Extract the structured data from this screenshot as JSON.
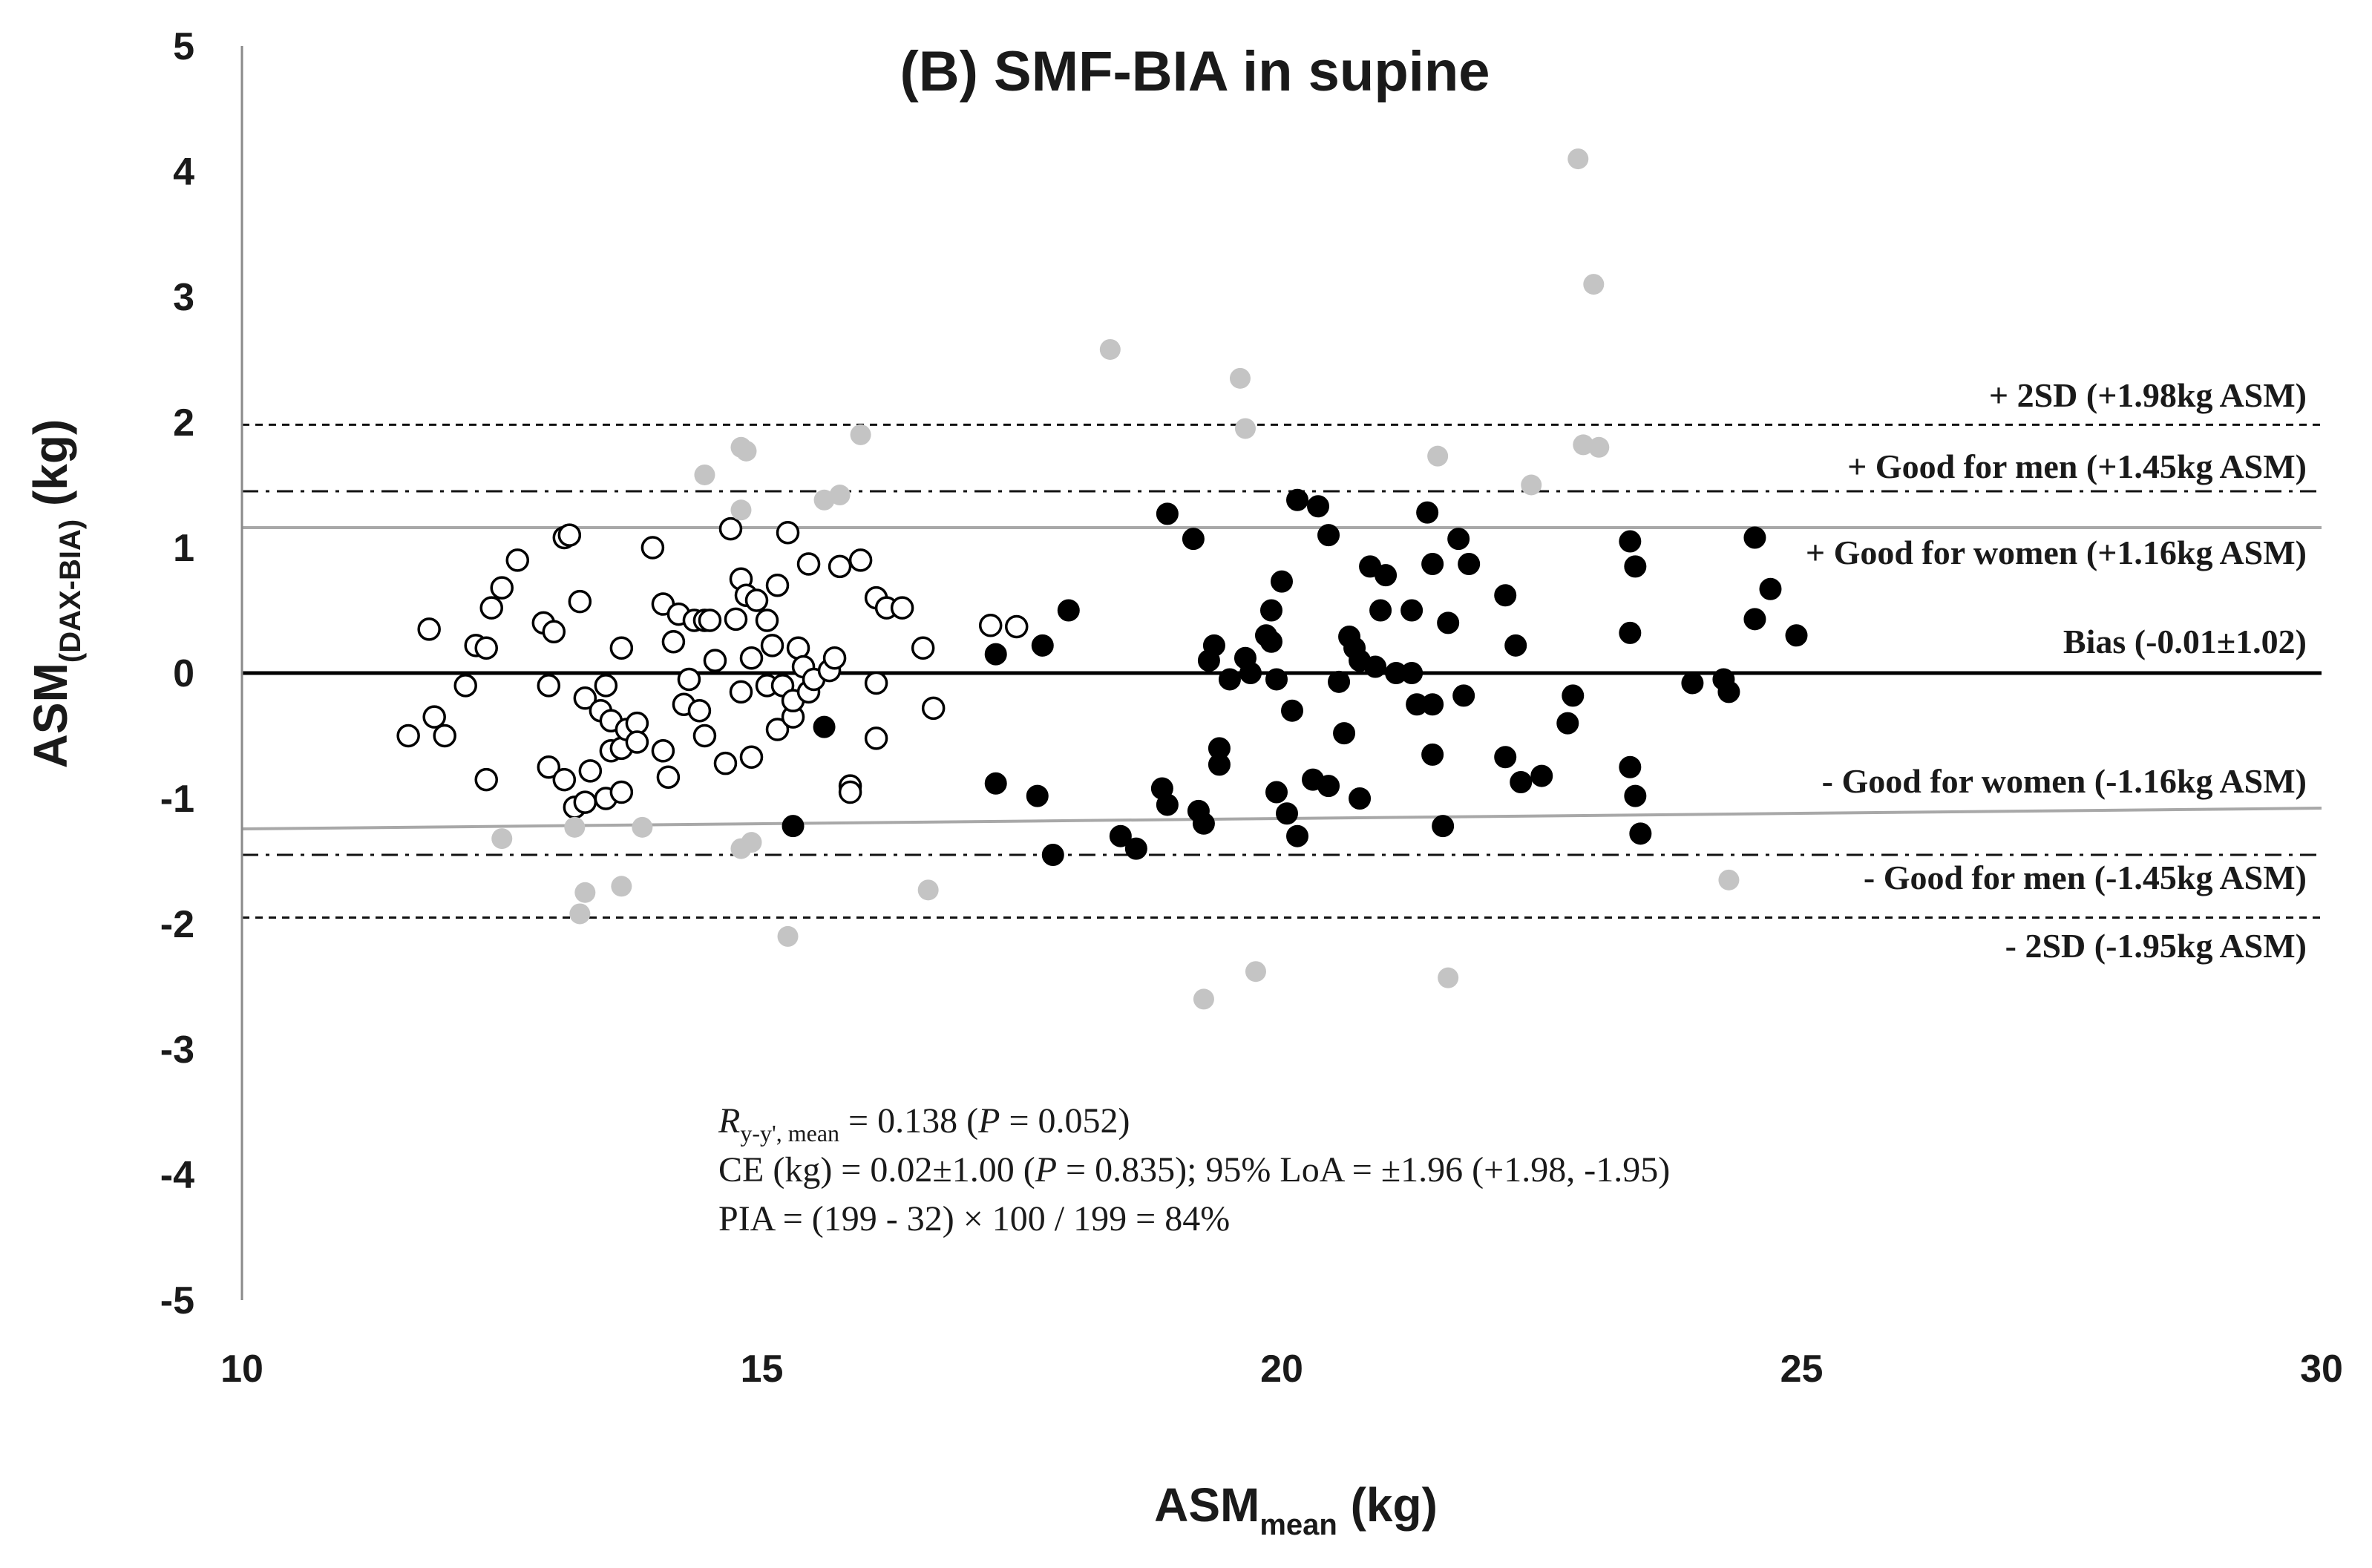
{
  "chart_data": {
    "type": "scatter",
    "title": "(B) SMF-BIA in supine",
    "ylabel": {
      "main": "ASM",
      "sub": "(DAX-BIA)",
      "unit": " (kg)"
    },
    "xlabel": {
      "main": "ASM",
      "sub": "mean",
      "unit": " (kg)"
    },
    "xlim": [
      10,
      30
    ],
    "ylim": [
      -5,
      5
    ],
    "x_ticks": [
      {
        "value": 10,
        "label": "10"
      },
      {
        "value": 15,
        "label": "15"
      },
      {
        "value": 20,
        "label": "20"
      },
      {
        "value": 25,
        "label": "25"
      },
      {
        "value": 30,
        "label": "30"
      }
    ],
    "y_ticks": [
      {
        "value": 5,
        "label": "5"
      },
      {
        "value": 4,
        "label": "4"
      },
      {
        "value": 3,
        "label": "3"
      },
      {
        "value": 2,
        "label": "2"
      },
      {
        "value": 1,
        "label": "1"
      },
      {
        "value": 0,
        "label": "0"
      },
      {
        "value": -1,
        "label": "-1"
      },
      {
        "value": -2,
        "label": "-2"
      },
      {
        "value": -3,
        "label": "-3"
      },
      {
        "value": -4,
        "label": "-4"
      },
      {
        "value": -5,
        "label": "-5"
      }
    ],
    "reference_lines": [
      {
        "name": "plus-2sd",
        "y": 1.98,
        "style": "dashed",
        "label": "+ 2SD (+1.98kg ASM)"
      },
      {
        "name": "plus-good-men",
        "y": 1.45,
        "style": "dashdot",
        "label": "+ Good for men (+1.45kg ASM)"
      },
      {
        "name": "plus-good-women",
        "y": 1.16,
        "style": "gray",
        "label": "+ Good for women (+1.16kg ASM)"
      },
      {
        "name": "bias",
        "y": 0,
        "style": "solid",
        "label": "Bias (-0.01±1.02)"
      },
      {
        "name": "minus-good-women",
        "y": -1.16,
        "style": "gray",
        "label": "- Good for women (-1.16kg ASM)"
      },
      {
        "name": "minus-good-men",
        "y": -1.45,
        "style": "dashdot",
        "label": "- Good for men (-1.45kg ASM)"
      },
      {
        "name": "minus-2sd",
        "y": -1.95,
        "style": "dashed",
        "label": "- 2SD (-1.95kg ASM)"
      }
    ],
    "stats_text": {
      "r_symbol": "R",
      "r_sub": "y-y', mean",
      "r_value": " = 0.138 (",
      "p_symbol": "P",
      "r_p_value": " = 0.052)",
      "ce_prefix": "CE (kg) = 0.02±1.00 (",
      "ce_p_value": " = 0.835); 95% LoA = ±1.96 (+1.98, -1.95)",
      "pia": "PIA = (199 - 32) × 100 / 199 = 84%"
    },
    "series": [
      {
        "name": "women",
        "style": "open",
        "points": [
          [
            11.6,
            -0.5
          ],
          [
            11.8,
            0.35
          ],
          [
            11.85,
            -0.35
          ],
          [
            11.95,
            -0.5
          ],
          [
            12.15,
            -0.1
          ],
          [
            12.25,
            0.22
          ],
          [
            12.35,
            -0.85
          ],
          [
            12.35,
            0.2
          ],
          [
            12.4,
            0.52
          ],
          [
            12.5,
            0.68
          ],
          [
            12.65,
            0.9
          ],
          [
            12.9,
            0.4
          ],
          [
            12.95,
            -0.1
          ],
          [
            12.95,
            -0.75
          ],
          [
            13.0,
            0.33
          ],
          [
            13.1,
            -0.85
          ],
          [
            13.1,
            1.08
          ],
          [
            13.15,
            1.1
          ],
          [
            13.2,
            -1.07
          ],
          [
            13.25,
            0.57
          ],
          [
            13.3,
            -0.2
          ],
          [
            13.3,
            -1.03
          ],
          [
            13.35,
            -0.78
          ],
          [
            13.45,
            -0.3
          ],
          [
            13.5,
            -1.0
          ],
          [
            13.5,
            -0.1
          ],
          [
            13.55,
            -0.62
          ],
          [
            13.55,
            -0.38
          ],
          [
            13.65,
            -0.6
          ],
          [
            13.65,
            -0.95
          ],
          [
            13.65,
            0.2
          ],
          [
            13.7,
            -0.45
          ],
          [
            13.8,
            -0.4
          ],
          [
            13.8,
            -0.55
          ],
          [
            13.95,
            1.0
          ],
          [
            14.05,
            -0.62
          ],
          [
            14.05,
            0.55
          ],
          [
            14.1,
            -0.83
          ],
          [
            14.15,
            0.25
          ],
          [
            14.2,
            0.47
          ],
          [
            14.25,
            -0.25
          ],
          [
            14.3,
            -0.05
          ],
          [
            14.35,
            0.42
          ],
          [
            14.4,
            -0.3
          ],
          [
            14.45,
            -0.5
          ],
          [
            14.45,
            0.42
          ],
          [
            14.5,
            0.42
          ],
          [
            14.55,
            0.1
          ],
          [
            14.65,
            -0.72
          ],
          [
            14.7,
            1.15
          ],
          [
            14.75,
            0.43
          ],
          [
            14.8,
            -0.15
          ],
          [
            14.8,
            0.75
          ],
          [
            14.85,
            0.62
          ],
          [
            14.9,
            -0.67
          ],
          [
            14.9,
            0.12
          ],
          [
            14.95,
            0.58
          ],
          [
            15.05,
            0.42
          ],
          [
            15.05,
            -0.1
          ],
          [
            15.1,
            0.22
          ],
          [
            15.15,
            -0.45
          ],
          [
            15.15,
            0.7
          ],
          [
            15.2,
            -0.1
          ],
          [
            15.25,
            1.12
          ],
          [
            15.3,
            -0.35
          ],
          [
            15.3,
            -0.22
          ],
          [
            15.35,
            0.2
          ],
          [
            15.4,
            0.05
          ],
          [
            15.45,
            -0.15
          ],
          [
            15.45,
            0.87
          ],
          [
            15.5,
            -0.05
          ],
          [
            15.65,
            0.02
          ],
          [
            15.7,
            0.12
          ],
          [
            15.75,
            0.85
          ],
          [
            15.85,
            -0.9
          ],
          [
            15.85,
            -0.95
          ],
          [
            15.95,
            0.9
          ],
          [
            16.1,
            -0.08
          ],
          [
            16.1,
            -0.52
          ],
          [
            16.1,
            0.6
          ],
          [
            16.2,
            0.52
          ],
          [
            16.35,
            0.52
          ],
          [
            16.55,
            0.2
          ],
          [
            16.65,
            -0.28
          ],
          [
            17.2,
            0.38
          ],
          [
            17.45,
            0.37
          ]
        ]
      },
      {
        "name": "men",
        "style": "filled",
        "points": [
          [
            15.6,
            -0.43
          ],
          [
            15.3,
            -1.22
          ],
          [
            17.25,
            -0.88
          ],
          [
            17.25,
            0.15
          ],
          [
            17.65,
            -0.98
          ],
          [
            17.7,
            0.22
          ],
          [
            17.8,
            -1.45
          ],
          [
            17.95,
            0.5
          ],
          [
            18.45,
            -1.3
          ],
          [
            18.6,
            -1.4
          ],
          [
            18.85,
            -0.92
          ],
          [
            18.9,
            -1.05
          ],
          [
            18.9,
            1.27
          ],
          [
            19.15,
            1.07
          ],
          [
            19.2,
            -1.1
          ],
          [
            19.25,
            -1.2
          ],
          [
            19.3,
            0.1
          ],
          [
            19.35,
            0.22
          ],
          [
            19.4,
            -0.73
          ],
          [
            19.4,
            -0.6
          ],
          [
            19.5,
            -0.05
          ],
          [
            19.65,
            0.12
          ],
          [
            19.7,
            0.0
          ],
          [
            19.85,
            0.3
          ],
          [
            19.9,
            0.5
          ],
          [
            19.9,
            0.25
          ],
          [
            19.95,
            -0.05
          ],
          [
            19.95,
            -0.95
          ],
          [
            20.0,
            0.73
          ],
          [
            20.05,
            -1.12
          ],
          [
            20.1,
            -0.3
          ],
          [
            20.15,
            1.38
          ],
          [
            20.15,
            -1.3
          ],
          [
            20.3,
            -0.85
          ],
          [
            20.35,
            1.33
          ],
          [
            20.45,
            1.1
          ],
          [
            20.45,
            -0.9
          ],
          [
            20.55,
            -0.07
          ],
          [
            20.6,
            -0.48
          ],
          [
            20.65,
            0.29
          ],
          [
            20.7,
            0.2
          ],
          [
            20.75,
            -1.0
          ],
          [
            20.75,
            0.1
          ],
          [
            20.85,
            0.85
          ],
          [
            20.9,
            0.05
          ],
          [
            20.95,
            0.5
          ],
          [
            21.0,
            0.78
          ],
          [
            21.1,
            0.0
          ],
          [
            21.25,
            0.5
          ],
          [
            21.25,
            0.0
          ],
          [
            21.3,
            -0.25
          ],
          [
            21.4,
            1.28
          ],
          [
            21.45,
            -0.25
          ],
          [
            21.45,
            -0.65
          ],
          [
            21.45,
            0.87
          ],
          [
            21.55,
            -1.22
          ],
          [
            21.6,
            0.4
          ],
          [
            21.7,
            1.07
          ],
          [
            21.75,
            -0.18
          ],
          [
            21.8,
            0.87
          ],
          [
            22.15,
            0.62
          ],
          [
            22.15,
            -0.67
          ],
          [
            22.25,
            0.22
          ],
          [
            22.3,
            -0.87
          ],
          [
            22.5,
            -0.82
          ],
          [
            22.75,
            -0.4
          ],
          [
            22.8,
            -0.18
          ],
          [
            23.35,
            0.32
          ],
          [
            23.35,
            1.05
          ],
          [
            23.35,
            -0.75
          ],
          [
            23.4,
            -0.98
          ],
          [
            23.4,
            0.85
          ],
          [
            23.45,
            -1.28
          ],
          [
            23.95,
            -0.08
          ],
          [
            24.25,
            -0.05
          ],
          [
            24.3,
            -0.15
          ],
          [
            24.55,
            1.08
          ],
          [
            24.55,
            0.43
          ],
          [
            24.7,
            0.67
          ],
          [
            24.95,
            0.3
          ]
        ]
      },
      {
        "name": "outside-limits",
        "style": "gray",
        "points": [
          [
            12.5,
            -1.32
          ],
          [
            13.2,
            -1.23
          ],
          [
            13.25,
            -1.92
          ],
          [
            13.3,
            -1.75
          ],
          [
            13.65,
            -1.7
          ],
          [
            13.85,
            -1.23
          ],
          [
            14.45,
            1.58
          ],
          [
            14.8,
            1.3
          ],
          [
            14.8,
            1.8
          ],
          [
            14.85,
            1.77
          ],
          [
            14.8,
            -1.4
          ],
          [
            14.9,
            -1.35
          ],
          [
            15.25,
            -2.1
          ],
          [
            15.6,
            1.38
          ],
          [
            15.75,
            1.42
          ],
          [
            15.95,
            1.9
          ],
          [
            16.6,
            -1.73
          ],
          [
            18.35,
            2.58
          ],
          [
            19.6,
            2.35
          ],
          [
            19.65,
            1.95
          ],
          [
            19.75,
            -2.38
          ],
          [
            19.25,
            -2.6
          ],
          [
            21.5,
            1.73
          ],
          [
            21.6,
            -2.43
          ],
          [
            22.4,
            1.5
          ],
          [
            22.85,
            4.1
          ],
          [
            22.9,
            1.82
          ],
          [
            23.0,
            3.1
          ],
          [
            23.05,
            1.8
          ],
          [
            24.3,
            -1.65
          ]
        ]
      }
    ]
  }
}
